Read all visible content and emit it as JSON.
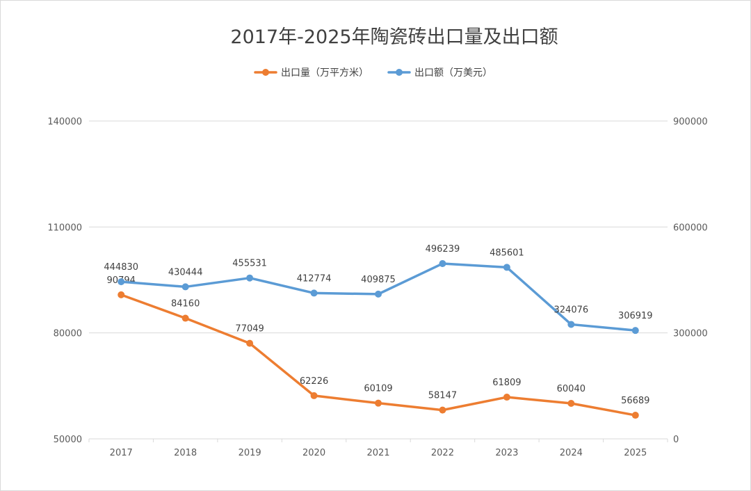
{
  "chart_data": {
    "type": "line",
    "title": "2017年-2025年陶瓷砖出口量及出口额",
    "categories": [
      "2017",
      "2018",
      "2019",
      "2020",
      "2021",
      "2022",
      "2023",
      "2024",
      "2025"
    ],
    "series": [
      {
        "name": "出口量（万平方米）",
        "axis": "left",
        "color": "#ED7D31",
        "values": [
          90794,
          84160,
          77049,
          62226,
          60109,
          58147,
          61809,
          60040,
          56689
        ],
        "labels": [
          "90794",
          "84160",
          "77049",
          "62226",
          "60109",
          "58147",
          "61809",
          "60040",
          "56689"
        ]
      },
      {
        "name": "出口额（万美元）",
        "axis": "right",
        "color": "#5B9BD5",
        "values": [
          444830,
          430444,
          455531,
          412774,
          409875,
          496239,
          485601,
          324076,
          306919
        ],
        "labels": [
          "444830",
          "430444",
          "455531",
          "412774",
          "409875",
          "496239",
          "485601",
          "324076",
          "306919"
        ]
      }
    ],
    "y_left": {
      "ticks": [
        "50000",
        "80000",
        "110000",
        "140000"
      ]
    },
    "y_right": {
      "ticks": [
        "0",
        "300000",
        "600000",
        "900000"
      ]
    },
    "legend_position": "top-center",
    "grid": true
  }
}
